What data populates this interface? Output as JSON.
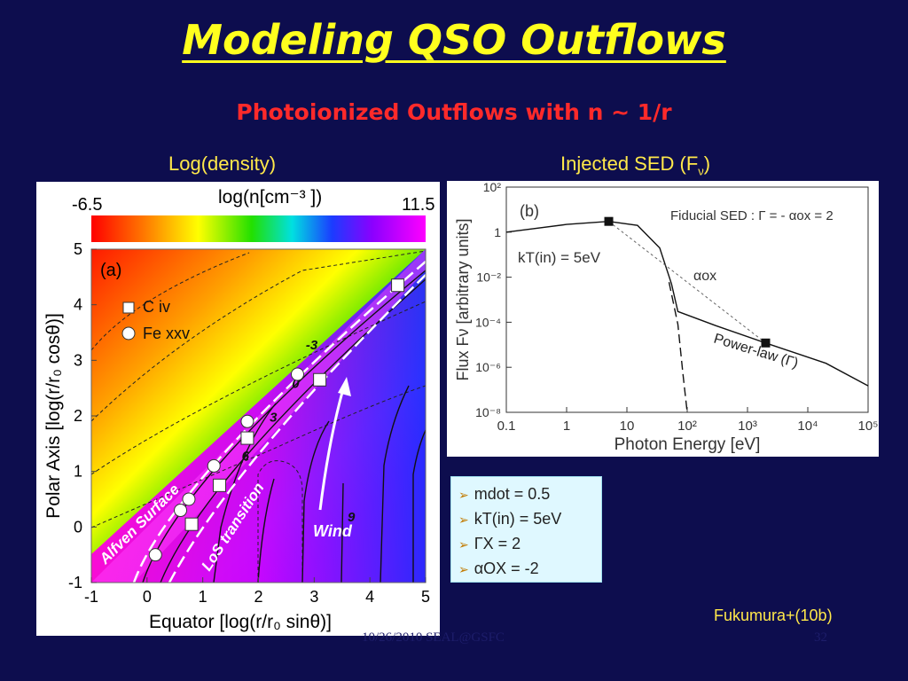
{
  "slide": {
    "title": "Modeling QSO Outflows",
    "subtitle": "Photoionized Outflows with n ~ 1/r",
    "left_label": "Log(density)",
    "right_label_main": "Injected SED (F",
    "right_label_sub": "ν",
    "right_label_end": ")",
    "credit": "Fukumura+(10b)",
    "footer_left": "10/26/2010 SEAL@GSFC",
    "footer_right": "32"
  },
  "colors": {
    "background": "#0d0d4e",
    "title": "#ffff1e",
    "subtitle": "#ff2a2a",
    "labels": "#ffe84a",
    "bullet_box": "#dff8ff"
  },
  "params": {
    "items": [
      {
        "key": "mdot",
        "text": "mdot = 0.5"
      },
      {
        "key": "kT",
        "text": "kT(in) = 5eV"
      },
      {
        "key": "gamma",
        "text": "ΓX = 2"
      },
      {
        "key": "alpha",
        "text": "αOX = -2"
      }
    ]
  },
  "chart_data": [
    {
      "type": "heatmap",
      "panel_label": "(a)",
      "colorbar": {
        "title": "log(n[cm⁻³ ])",
        "min": -6.5,
        "max": 11.5
      },
      "xlabel": "Equator [log(r/r₀ sinθ)]",
      "ylabel": "Polar Axis [log(r/r₀ cosθ)]",
      "xlim": [
        -1,
        5
      ],
      "ylim": [
        -1,
        5
      ],
      "xticks": [
        -1,
        0,
        1,
        2,
        3,
        4,
        5
      ],
      "yticks": [
        -1,
        0,
        1,
        2,
        3,
        4,
        5
      ],
      "contour_labels": [
        "-3",
        "0",
        "3",
        "6",
        "9"
      ],
      "legend": [
        {
          "name": "C iv",
          "marker": "square"
        },
        {
          "name": "Fe xxv",
          "marker": "circle"
        }
      ],
      "annotations": [
        "Alfven Surface",
        "LoS transition",
        "Wind"
      ],
      "series": [
        {
          "name": "C iv",
          "points": [
            [
              0.8,
              0.05
            ],
            [
              1.3,
              0.75
            ],
            [
              1.8,
              1.6
            ],
            [
              3.1,
              2.65
            ],
            [
              4.5,
              4.35
            ]
          ]
        },
        {
          "name": "Fe xxv",
          "points": [
            [
              0.15,
              -0.5
            ],
            [
              0.6,
              0.3
            ],
            [
              0.75,
              0.5
            ],
            [
              1.2,
              1.1
            ],
            [
              1.8,
              1.9
            ],
            [
              2.7,
              2.75
            ]
          ]
        }
      ]
    },
    {
      "type": "line",
      "panel_label": "(b)",
      "annotation_title": "Fiducial SED : Γ = - αox = 2",
      "annotations": [
        "kT(in) = 5eV",
        "αox",
        "Power-law (Γ)"
      ],
      "xlabel": "Photon Energy [eV]",
      "ylabel": "Flux Fν [arbitrary units]",
      "xscale": "log",
      "yscale": "log",
      "xlim": [
        0.1,
        100000
      ],
      "ylim": [
        1e-08,
        100
      ],
      "xticks": [
        "0.1",
        "1",
        "10",
        "10²",
        "10³",
        "10⁴",
        "10⁵"
      ],
      "yticks": [
        "10⁻⁸",
        "10⁻⁶",
        "10⁻⁴",
        "10⁻²",
        "1",
        "10²"
      ],
      "series": [
        {
          "name": "SED",
          "points": [
            [
              0.1,
              1
            ],
            [
              1,
              2.2
            ],
            [
              5,
              3
            ],
            [
              15,
              2
            ],
            [
              35,
              0.2
            ],
            [
              55,
              0.005
            ],
            [
              70,
              0.0003
            ],
            [
              300,
              7e-05
            ],
            [
              2000,
              1.2e-05
            ],
            [
              20000,
              1.5e-06
            ],
            [
              100000,
              1.5e-07
            ]
          ]
        },
        {
          "name": "disk",
          "points": [
            [
              50,
              0.006
            ],
            [
              70,
              8e-05
            ],
            [
              85,
              5e-07
            ],
            [
              100,
              1e-08
            ]
          ]
        },
        {
          "name": "αox",
          "points": [
            [
              5,
              3
            ],
            [
              2000,
              1.2e-05
            ]
          ]
        }
      ],
      "markers": [
        [
          5,
          3
        ],
        [
          2000,
          1.2e-05
        ]
      ]
    }
  ]
}
